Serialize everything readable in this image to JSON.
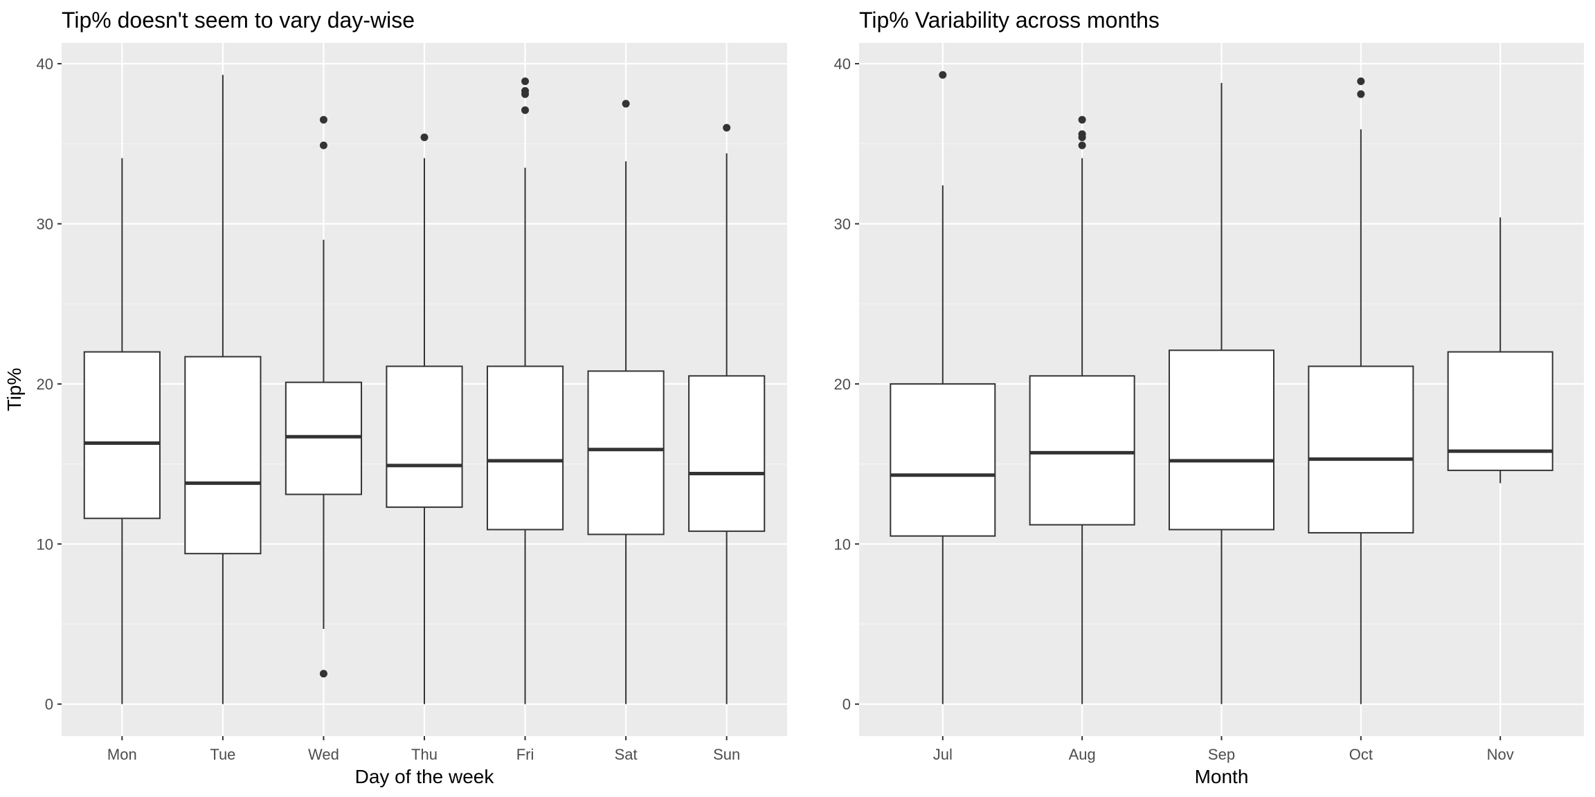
{
  "colors": {
    "panel_background": "#ebebeb",
    "grid_major": "#ffffff",
    "grid_minor": "#f5f5f5",
    "box_fill": "#ffffff",
    "box_line": "#333333",
    "outlier": "#333333",
    "tick_text": "#4d4d4d"
  },
  "chart_data": [
    {
      "type": "boxplot",
      "title": "Tip% doesn't seem to vary day-wise",
      "xlabel": "Day of the week",
      "ylabel": "Tip%",
      "ylim": [
        -2,
        41.3
      ],
      "yticks": [
        0,
        10,
        20,
        30,
        40
      ],
      "grid": true,
      "categories": [
        "Mon",
        "Tue",
        "Wed",
        "Thu",
        "Fri",
        "Sat",
        "Sun"
      ],
      "boxes": [
        {
          "category": "Mon",
          "whisker_low": 0,
          "q1": 11.6,
          "median": 16.3,
          "q3": 22.0,
          "whisker_high": 34.1,
          "outliers": []
        },
        {
          "category": "Tue",
          "whisker_low": 0,
          "q1": 9.4,
          "median": 13.8,
          "q3": 21.7,
          "whisker_high": 39.3,
          "outliers": []
        },
        {
          "category": "Wed",
          "whisker_low": 4.7,
          "q1": 13.1,
          "median": 16.7,
          "q3": 20.1,
          "whisker_high": 29.0,
          "outliers": [
            1.9,
            34.9,
            36.5
          ]
        },
        {
          "category": "Thu",
          "whisker_low": 0,
          "q1": 12.3,
          "median": 14.9,
          "q3": 21.1,
          "whisker_high": 34.1,
          "outliers": [
            35.4
          ]
        },
        {
          "category": "Fri",
          "whisker_low": 0,
          "q1": 10.9,
          "median": 15.2,
          "q3": 21.1,
          "whisker_high": 33.5,
          "outliers": [
            37.1,
            38.1,
            38.3,
            38.9
          ]
        },
        {
          "category": "Sat",
          "whisker_low": 0,
          "q1": 10.6,
          "median": 15.9,
          "q3": 20.8,
          "whisker_high": 33.9,
          "outliers": [
            37.5
          ]
        },
        {
          "category": "Sun",
          "whisker_low": 0,
          "q1": 10.8,
          "median": 14.4,
          "q3": 20.5,
          "whisker_high": 34.4,
          "outliers": [
            36.0
          ]
        }
      ]
    },
    {
      "type": "boxplot",
      "title": "Tip% Variability across months",
      "xlabel": "Month",
      "ylabel": "",
      "ylim": [
        -2,
        41.3
      ],
      "yticks": [
        0,
        10,
        20,
        30,
        40
      ],
      "grid": true,
      "categories": [
        "Jul",
        "Aug",
        "Sep",
        "Oct",
        "Nov"
      ],
      "boxes": [
        {
          "category": "Jul",
          "whisker_low": 0,
          "q1": 10.5,
          "median": 14.3,
          "q3": 20.0,
          "whisker_high": 32.4,
          "outliers": [
            39.3
          ]
        },
        {
          "category": "Aug",
          "whisker_low": 0,
          "q1": 11.2,
          "median": 15.7,
          "q3": 20.5,
          "whisker_high": 34.1,
          "outliers": [
            34.9,
            35.4,
            35.6,
            36.5
          ]
        },
        {
          "category": "Sep",
          "whisker_low": 0,
          "q1": 10.9,
          "median": 15.2,
          "q3": 22.1,
          "whisker_high": 38.8,
          "outliers": []
        },
        {
          "category": "Oct",
          "whisker_low": 0,
          "q1": 10.7,
          "median": 15.3,
          "q3": 21.1,
          "whisker_high": 35.9,
          "outliers": [
            38.1,
            38.9
          ]
        },
        {
          "category": "Nov",
          "whisker_low": 13.8,
          "q1": 14.6,
          "median": 15.8,
          "q3": 22.0,
          "whisker_high": 30.4,
          "outliers": []
        }
      ]
    }
  ]
}
